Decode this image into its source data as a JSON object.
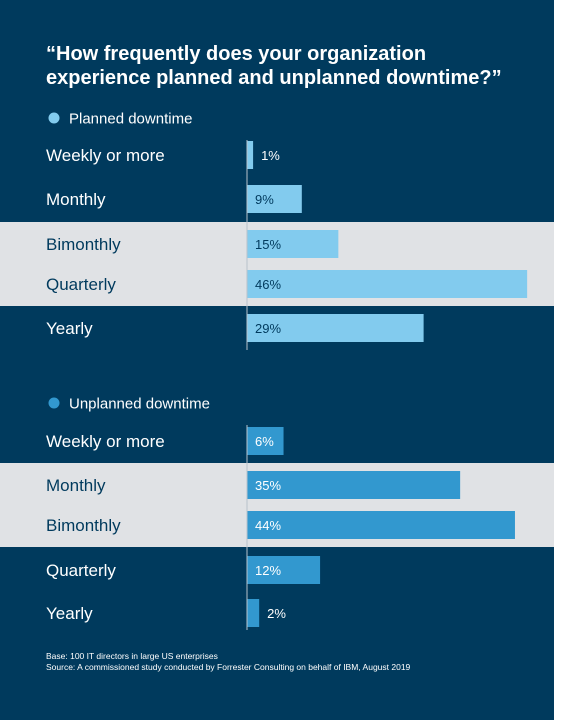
{
  "title": "“How frequently does your organization experience planned and unplanned downtime?”",
  "footnote": {
    "base": "Base: 100 IT directors in large US enterprises",
    "source": "Source: A commissioned study conducted by Forrester Consulting on behalf of IBM, August 2019"
  },
  "colors": {
    "background": "#003a5d",
    "highlight_band": "#e0e2e5",
    "planned": "#82cbee",
    "unplanned": "#3298cf"
  },
  "chart_data": [
    {
      "type": "bar",
      "orientation": "horizontal",
      "legend": "Planned downtime",
      "color": "#82cbee",
      "categories": [
        "Weekly or more",
        "Monthly",
        "Bimonthly",
        "Quarterly",
        "Yearly"
      ],
      "values": [
        1,
        9,
        15,
        46,
        29
      ],
      "value_labels": [
        "1%",
        "9%",
        "15%",
        "46%",
        "29%"
      ],
      "highlighted": [
        false,
        false,
        true,
        true,
        false
      ],
      "unit": "%"
    },
    {
      "type": "bar",
      "orientation": "horizontal",
      "legend": "Unplanned downtime",
      "color": "#3298cf",
      "categories": [
        "Weekly or more",
        "Monthly",
        "Bimonthly",
        "Quarterly",
        "Yearly"
      ],
      "values": [
        6,
        35,
        44,
        12,
        2
      ],
      "value_labels": [
        "6%",
        "35%",
        "44%",
        "12%",
        "2%"
      ],
      "highlighted": [
        false,
        true,
        true,
        false,
        false
      ],
      "unit": "%"
    }
  ]
}
